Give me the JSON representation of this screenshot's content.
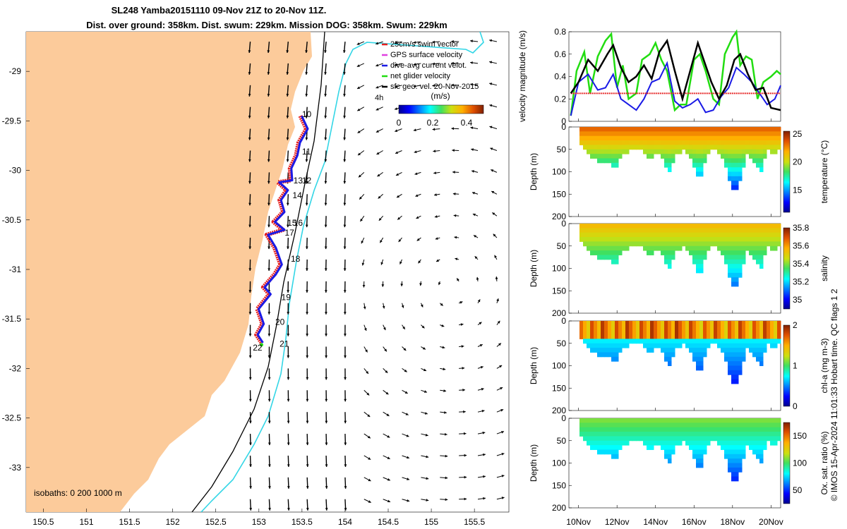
{
  "title": {
    "line1": "SL248 Yamba20151110 09-Nov 21Z to 20-Nov 11Z.",
    "line2": "Dist. over ground: 358km. Dist. swum: 229km. Mission DOG: 358km. Swum: 229km"
  },
  "copyright": "© IMOS 15-Apr-2024 11:01:33 Hobart time. QC flags 1  2",
  "colors": {
    "land": "#FCCB9B",
    "track": "#E52020",
    "dive_current": "#1A1AE6",
    "net_velocity": "#22DD11",
    "sfc_geo": "#000000",
    "isobath_200": "#33D6E6",
    "isobath_1000": "#000000"
  },
  "chart_data": [
    {
      "type": "map",
      "name": "track-map",
      "x_ticks": [
        "150.5",
        "151",
        "151.5",
        "152",
        "152.5",
        "153",
        "153.5",
        "154",
        "154.5",
        "155",
        "155.5"
      ],
      "y_ticks": [
        "-29",
        "-29.5",
        "-30",
        "-30.5",
        "-31",
        "-31.5",
        "-32",
        "-32.5",
        "-33"
      ],
      "xlim": [
        150.3,
        155.9
      ],
      "ylim": [
        -33.45,
        -28.6
      ],
      "legend": [
        "25cm/s swim vector",
        "GPS surface velocity",
        "dive-avg current velot.",
        "net glider velocity",
        "sfc geo. vel. 20-Nov-2015"
      ],
      "colorbar": {
        "label": "(m/s)",
        "ticks": [
          "0",
          "0.2",
          "0.4"
        ]
      },
      "day_labels": [
        {
          "label": "10",
          "lon": 153.5,
          "lat": -29.46
        },
        {
          "label": "11",
          "lon": 153.5,
          "lat": -29.84
        },
        {
          "label": "12",
          "lon": 153.5,
          "lat": -30.13
        },
        {
          "label": "13",
          "lon": 153.4,
          "lat": -30.13
        },
        {
          "label": "14",
          "lon": 153.39,
          "lat": -30.28
        },
        {
          "label": "15",
          "lon": 153.33,
          "lat": -30.56
        },
        {
          "label": "16",
          "lon": 153.4,
          "lat": -30.56
        },
        {
          "label": "17",
          "lon": 153.3,
          "lat": -30.66
        },
        {
          "label": "18",
          "lon": 153.37,
          "lat": -30.92
        },
        {
          "label": "19",
          "lon": 153.26,
          "lat": -31.31
        },
        {
          "label": "20",
          "lon": 153.19,
          "lat": -31.56
        },
        {
          "label": "21",
          "lon": 153.24,
          "lat": -31.78
        },
        {
          "label": "22",
          "lon": 152.93,
          "lat": -31.82
        }
      ],
      "track": [
        [
          153.48,
          -29.45
        ],
        [
          153.55,
          -29.58
        ],
        [
          153.46,
          -29.72
        ],
        [
          153.43,
          -29.85
        ],
        [
          153.36,
          -29.98
        ],
        [
          153.37,
          -30.1
        ],
        [
          153.22,
          -30.12
        ],
        [
          153.32,
          -30.2
        ],
        [
          153.24,
          -30.3
        ],
        [
          153.28,
          -30.42
        ],
        [
          153.17,
          -30.52
        ],
        [
          153.28,
          -30.6
        ],
        [
          153.09,
          -30.65
        ],
        [
          153.18,
          -30.78
        ],
        [
          153.25,
          -30.95
        ],
        [
          153.18,
          -31.05
        ],
        [
          153.05,
          -31.18
        ],
        [
          153.12,
          -31.25
        ],
        [
          152.98,
          -31.4
        ],
        [
          153.04,
          -31.55
        ],
        [
          152.97,
          -31.66
        ],
        [
          153.03,
          -31.74
        ]
      ],
      "isobaths_label": "isobaths: 0   200  1000 m",
      "sfc_geo_tag": "4h"
    },
    {
      "type": "line",
      "name": "velocity-panel",
      "ylabel": "velocity magnitude (m/s)",
      "ylim": [
        0,
        0.8
      ],
      "xlim": [
        9.5,
        20.5
      ],
      "y_ticks": [
        "0",
        "0.2",
        "0.4",
        "0.6",
        "0.8"
      ],
      "series": [
        {
          "name": "net glider velocity",
          "color": "#22DD11",
          "x": [
            9.6,
            9.9,
            10.3,
            10.6,
            11,
            11.4,
            11.7,
            12,
            12.3,
            12.6,
            13,
            13.3,
            13.7,
            14,
            14.3,
            14.6,
            15,
            15.3,
            15.6,
            16,
            16.3,
            16.6,
            17,
            17.3,
            17.6,
            18,
            18.2,
            18.4,
            18.7,
            19,
            19.3,
            19.6,
            20,
            20.3,
            20.5
          ],
          "y": [
            0.05,
            0.45,
            0.62,
            0.25,
            0.58,
            0.72,
            0.78,
            0.3,
            0.5,
            0.2,
            0.25,
            0.55,
            0.6,
            0.7,
            0.55,
            0.45,
            0.1,
            0.15,
            0.15,
            0.55,
            0.6,
            0.45,
            0.2,
            0.15,
            0.6,
            0.75,
            0.8,
            0.5,
            0.58,
            0.55,
            0.2,
            0.35,
            0.4,
            0.45,
            0.42
          ]
        },
        {
          "name": "dive-avg current velot.",
          "color": "#1A1AE6",
          "x": [
            9.6,
            10,
            10.5,
            11,
            11.4,
            11.8,
            12.2,
            12.6,
            13,
            13.4,
            13.8,
            14.2,
            14.6,
            15,
            15.4,
            15.8,
            16.2,
            16.6,
            17,
            17.4,
            17.8,
            18.2,
            18.6,
            19,
            19.4,
            19.8,
            20.2,
            20.5
          ],
          "y": [
            0.05,
            0.35,
            0.42,
            0.28,
            0.3,
            0.42,
            0.2,
            0.15,
            0.1,
            0.2,
            0.35,
            0.38,
            0.52,
            0.18,
            0.12,
            0.15,
            0.2,
            0.08,
            0.1,
            0.22,
            0.3,
            0.48,
            0.42,
            0.35,
            0.25,
            0.15,
            0.2,
            0.32
          ]
        },
        {
          "name": "25cm/s swim vector",
          "color": "#E52020",
          "x": [
            9.6,
            20.5
          ],
          "y": [
            0.25,
            0.25
          ]
        },
        {
          "name": "sfc geo. vel.",
          "color": "#000000",
          "x": [
            9.6,
            10,
            10.5,
            11,
            11.5,
            11.8,
            12.2,
            12.6,
            13,
            13.4,
            13.8,
            14.2,
            14.6,
            15,
            15.4,
            15.8,
            16.2,
            16.5,
            16.9,
            17.3,
            17.7,
            18.1,
            18.4,
            18.8,
            19.2,
            19.6,
            20,
            20.5
          ],
          "y": [
            0.25,
            0.35,
            0.55,
            0.45,
            0.6,
            0.68,
            0.48,
            0.35,
            0.4,
            0.5,
            0.38,
            0.62,
            0.72,
            0.45,
            0.2,
            0.45,
            0.7,
            0.55,
            0.35,
            0.2,
            0.32,
            0.55,
            0.6,
            0.42,
            0.28,
            0.3,
            0.12,
            0.1
          ]
        }
      ]
    },
    {
      "type": "heatmap",
      "name": "temperature-panel",
      "ylabel": "Depth (m)",
      "ylim": [
        200,
        0
      ],
      "y_ticks": [
        "0",
        "50",
        "100",
        "150",
        "200"
      ],
      "colorbar_label": "temperature (°C)",
      "colorbar_ticks": [
        "25",
        "20",
        "15"
      ],
      "clim": [
        11,
        25.5
      ],
      "max_depth_by_day": {
        "x": [
          10,
          10.5,
          11,
          11.4,
          11.8,
          12.2,
          12.7,
          13.2,
          13.6,
          14,
          14.3,
          14.6,
          15,
          15.4,
          15.8,
          16.2,
          16.6,
          17,
          17.4,
          17.8,
          18,
          18.3,
          18.6,
          19,
          19.4,
          19.7,
          20,
          20.5
        ],
        "depth": [
          30,
          60,
          75,
          70,
          88,
          60,
          40,
          50,
          70,
          55,
          70,
          100,
          60,
          40,
          70,
          115,
          55,
          45,
          65,
          120,
          140,
          120,
          55,
          75,
          100,
          40,
          60,
          30
        ]
      }
    },
    {
      "type": "heatmap",
      "name": "salinity-panel",
      "ylabel": "Depth (m)",
      "ylim": [
        200,
        0
      ],
      "y_ticks": [
        "0",
        "50",
        "100",
        "150",
        "200"
      ],
      "colorbar_label": "salinity",
      "colorbar_ticks": [
        "35.8",
        "35.6",
        "35.4",
        "35.2",
        "35"
      ],
      "clim": [
        34.9,
        35.8
      ]
    },
    {
      "type": "heatmap",
      "name": "chla-panel",
      "ylabel": "Depth (m)",
      "ylim": [
        200,
        0
      ],
      "y_ticks": [
        "0",
        "50",
        "100",
        "150",
        "200"
      ],
      "colorbar_label": "chl-a (mg m-3)",
      "colorbar_ticks": [
        "2",
        "1",
        "0"
      ],
      "clim": [
        0,
        2
      ]
    },
    {
      "type": "heatmap",
      "name": "oxygen-panel",
      "ylabel": "Depth (m)",
      "ylim": [
        200,
        0
      ],
      "y_ticks": [
        "0",
        "50",
        "100",
        "150",
        "200"
      ],
      "colorbar_label": "Ox. sat. ratio (%)",
      "colorbar_ticks": [
        "150",
        "100",
        "50"
      ],
      "clim": [
        25,
        175
      ],
      "x_ticks": [
        "10Nov",
        "12Nov",
        "14Nov",
        "16Nov",
        "18Nov",
        "20Nov"
      ]
    }
  ]
}
